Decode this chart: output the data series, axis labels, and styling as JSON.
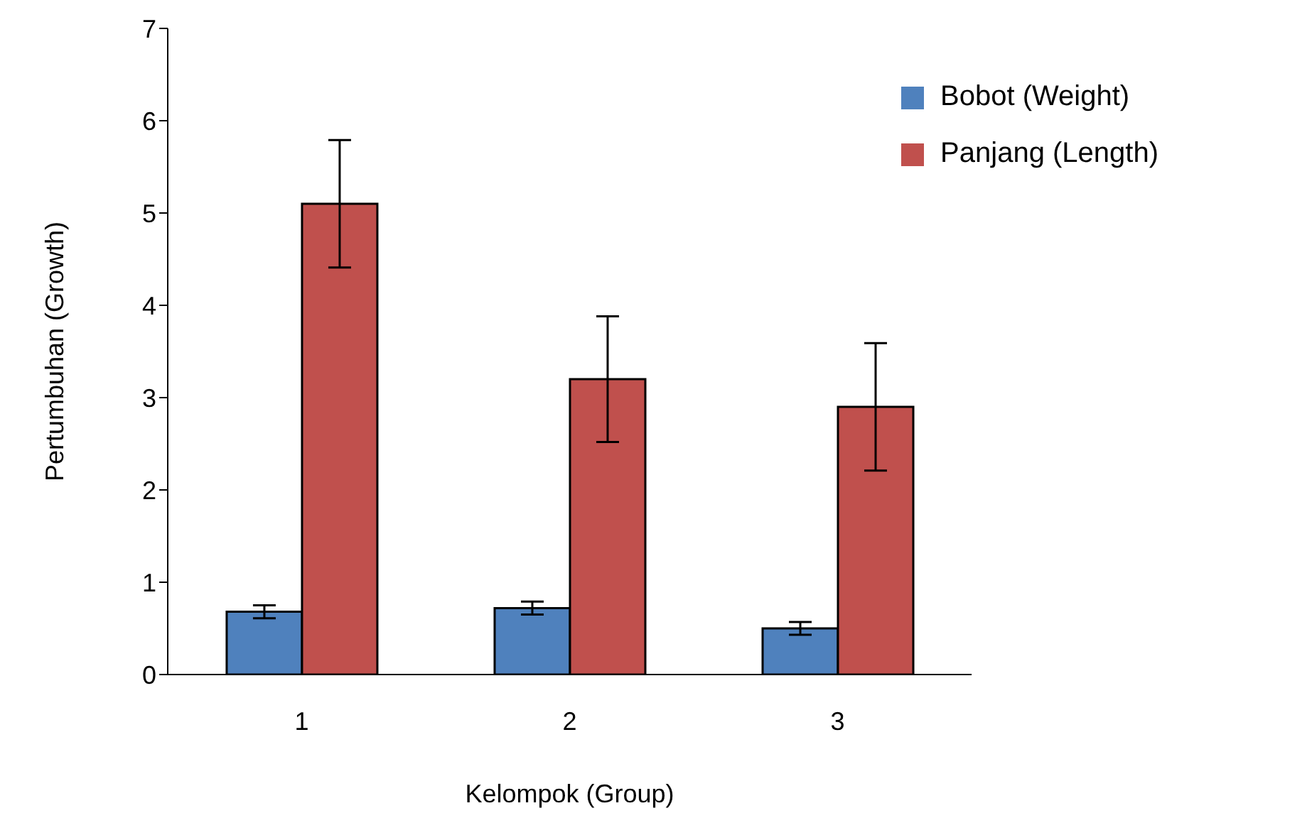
{
  "chart_data": {
    "type": "bar",
    "xlabel": "Kelompok (Group)",
    "ylabel": "Pertumbuhan (Growth)",
    "categories": [
      "1",
      "2",
      "3"
    ],
    "series": [
      {
        "name": "Bobot (Weight)",
        "color": "#4f81bd",
        "values": [
          0.68,
          0.72,
          0.5
        ],
        "errors": [
          0.07,
          0.07,
          0.07
        ]
      },
      {
        "name": "Panjang (Length)",
        "color": "#c0504d",
        "values": [
          5.1,
          3.2,
          2.9
        ],
        "errors": [
          0.69,
          0.68,
          0.69
        ]
      }
    ],
    "ylim": [
      0,
      7
    ],
    "yticks": [
      0,
      1,
      2,
      3,
      4,
      5,
      6,
      7
    ],
    "grid": false,
    "legend": "top right"
  }
}
